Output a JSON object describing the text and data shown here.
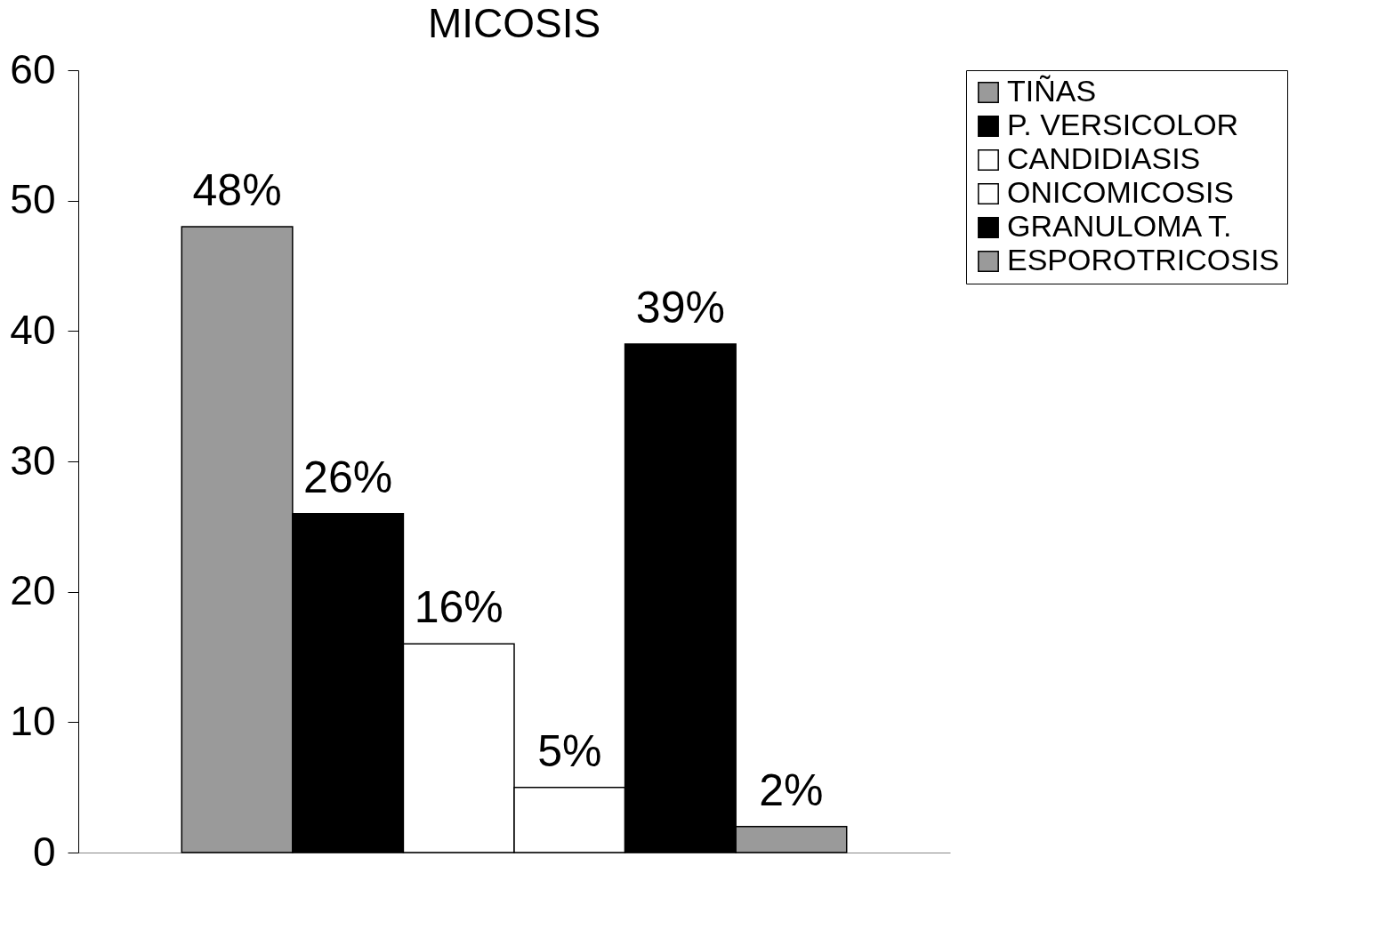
{
  "chart_data": {
    "type": "bar",
    "title": "MICOSIS",
    "categories": [
      null
    ],
    "series": [
      {
        "name": "TIÑAS",
        "color": "#9a9a9a",
        "values": [
          48
        ],
        "value_labels": [
          "48%"
        ]
      },
      {
        "name": "P. VERSICOLOR",
        "color": "#000000",
        "values": [
          26
        ],
        "value_labels": [
          "26%"
        ]
      },
      {
        "name": "CANDIDIASIS",
        "color": "#ffffff",
        "values": [
          16
        ],
        "value_labels": [
          "16%"
        ]
      },
      {
        "name": "ONICOMICOSIS",
        "color": "#ffffff",
        "values": [
          5
        ],
        "value_labels": [
          "5%"
        ]
      },
      {
        "name": "GRANULOMA T.",
        "color": "#000000",
        "values": [
          39
        ],
        "value_labels": [
          "39%"
        ]
      },
      {
        "name": "ESPOROTRICOSIS",
        "color": "#9a9a9a",
        "values": [
          2
        ],
        "value_labels": [
          "2%"
        ]
      }
    ],
    "ylim": [
      0,
      60
    ],
    "yticks": [
      0,
      10,
      20,
      30,
      40,
      50,
      60
    ],
    "grid": false,
    "legend": "right"
  }
}
